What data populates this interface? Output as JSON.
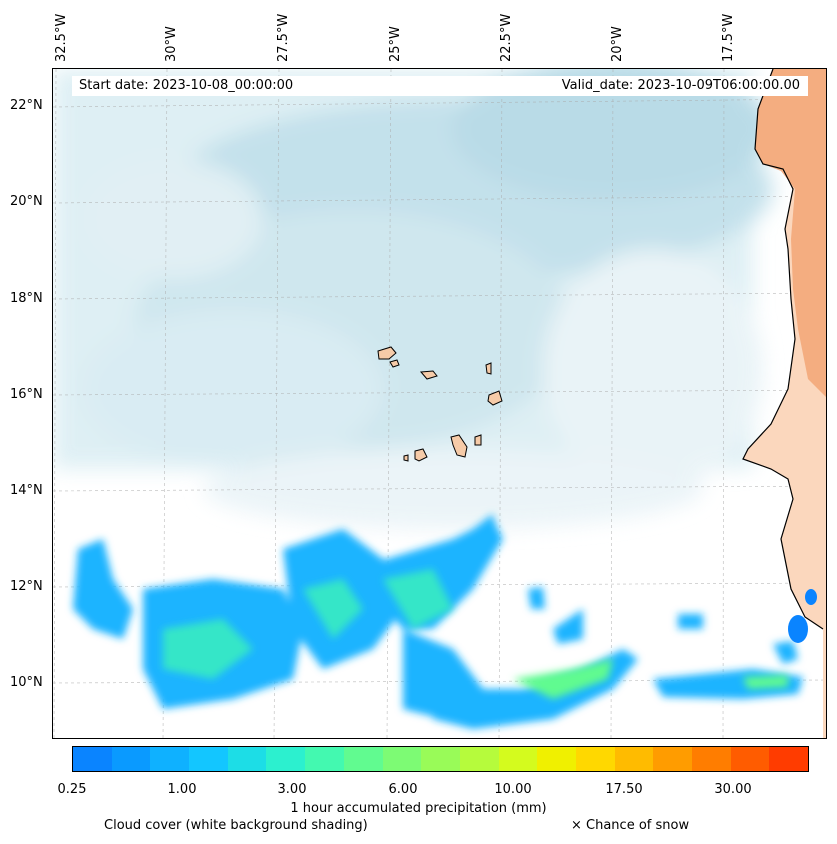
{
  "header": {
    "start_date": "Start date: 2023-10-08_00:00:00",
    "valid_date": "Valid_date: 2023-10-09T06:00:00.00"
  },
  "map": {
    "lon_labels": [
      "32.5°W",
      "30°W",
      "27.5°W",
      "25°W",
      "22.5°W",
      "20°W",
      "17.5°W"
    ],
    "lat_labels": [
      "22°N",
      "20°N",
      "18°N",
      "16°N",
      "14°N",
      "12°N",
      "10°N"
    ],
    "colors": {
      "cloud": "#c9e4ee",
      "land": "#f4b48a",
      "island": "#f6cba8",
      "precip_low": "#1eb4ff",
      "precip_mid": "#36e6c8"
    }
  },
  "colorbar": {
    "colors": [
      "#0a84ff",
      "#0a9aff",
      "#0fb1ff",
      "#13c6ff",
      "#1ddde6",
      "#2cf0cf",
      "#43f9b0",
      "#61fb90",
      "#7dfb74",
      "#99fb58",
      "#b6fb3c",
      "#d4fb1e",
      "#f0f000",
      "#ffd800",
      "#ffbb00",
      "#ff9c00",
      "#ff7d00",
      "#ff5c00",
      "#ff3c00"
    ],
    "ticks": [
      "0.25",
      "1.00",
      "3.00",
      "6.00",
      "10.00",
      "17.50",
      "30.00"
    ],
    "title": "1 hour accumulated precipitation (mm)"
  },
  "legend": {
    "cloud_note": "Cloud cover (white background shading)",
    "snow_note": "× Chance of snow"
  }
}
